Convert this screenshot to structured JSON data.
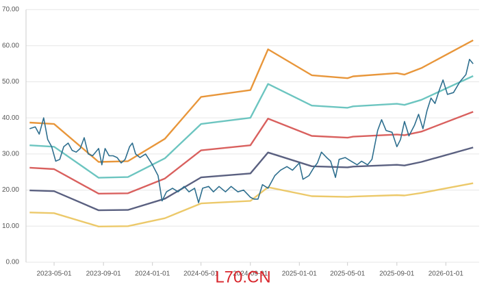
{
  "chart_data": {
    "type": "line",
    "annotation": "L70.CN",
    "xlim": [
      "2023-02-20",
      "2026-03-25"
    ],
    "xticks": [
      "2023-05-01",
      "2023-09-01",
      "2024-01-01",
      "2024-05-01",
      "2024-09-01",
      "2025-01-01",
      "2025-05-01",
      "2025-09-01",
      "2026-01-01"
    ],
    "ylim": [
      0,
      70
    ],
    "yticks": [
      {
        "value": 0,
        "label": "0.00"
      },
      {
        "value": 10,
        "label": "10.00"
      },
      {
        "value": 20,
        "label": "20.00"
      },
      {
        "value": 30,
        "label": "30.00"
      },
      {
        "value": 40,
        "label": "40.00"
      },
      {
        "value": 50,
        "label": "50.00"
      },
      {
        "value": 60,
        "label": "60.00"
      },
      {
        "value": 70,
        "label": "70.00"
      }
    ],
    "grid": true,
    "series": [
      {
        "color": "#e8963a",
        "x": [
          "2023-03-01",
          "2023-05-01",
          "2023-08-20",
          "2023-11-01",
          "2024-02-01",
          "2024-05-01",
          "2024-09-01",
          "2024-10-15",
          "2025-02-01",
          "2025-05-01",
          "2025-05-15",
          "2025-09-01",
          "2025-09-20",
          "2025-11-01",
          "2026-03-10"
        ],
        "values": [
          38.7,
          38.3,
          27.8,
          28,
          34.2,
          45.8,
          47.7,
          59,
          51.8,
          51,
          51.5,
          52.4,
          52,
          53.8,
          61.5
        ]
      },
      {
        "color": "#6cc5c0",
        "x": [
          "2023-03-01",
          "2023-05-01",
          "2023-08-20",
          "2023-11-01",
          "2024-02-01",
          "2024-05-01",
          "2024-09-01",
          "2024-10-15",
          "2025-02-01",
          "2025-05-01",
          "2025-05-15",
          "2025-09-01",
          "2025-09-20",
          "2025-11-01",
          "2026-03-10"
        ],
        "values": [
          32.4,
          32,
          23.4,
          23.6,
          28.8,
          38.3,
          40,
          49.4,
          43.4,
          42.8,
          43.2,
          43.9,
          43.6,
          45,
          51.6
        ]
      },
      {
        "color": "#d9605e",
        "x": [
          "2023-03-01",
          "2023-05-01",
          "2023-08-20",
          "2023-11-01",
          "2024-02-01",
          "2024-05-01",
          "2024-09-01",
          "2024-10-15",
          "2025-02-01",
          "2025-05-01",
          "2025-05-15",
          "2025-09-01",
          "2025-09-20",
          "2025-11-01",
          "2026-03-10"
        ],
        "values": [
          26.2,
          25.8,
          19,
          19.1,
          23.2,
          31,
          32.4,
          39.8,
          35,
          34.5,
          34.8,
          35.4,
          35.2,
          36.2,
          41.7
        ]
      },
      {
        "color": "#5a6080",
        "x": [
          "2023-03-01",
          "2023-05-01",
          "2023-08-20",
          "2023-11-01",
          "2024-02-01",
          "2024-05-01",
          "2024-09-01",
          "2024-10-15",
          "2025-02-01",
          "2025-05-01",
          "2025-05-15",
          "2025-09-01",
          "2025-09-20",
          "2025-11-01",
          "2026-03-10"
        ],
        "values": [
          19.9,
          19.7,
          14.4,
          14.5,
          17.6,
          23.5,
          24.6,
          30.4,
          26.6,
          26.3,
          26.5,
          27,
          26.8,
          27.8,
          31.8
        ]
      },
      {
        "color": "#ecc96a",
        "x": [
          "2023-03-01",
          "2023-05-01",
          "2023-08-20",
          "2023-11-01",
          "2024-02-01",
          "2024-05-01",
          "2024-09-01",
          "2024-10-15",
          "2025-02-01",
          "2025-05-01",
          "2025-05-15",
          "2025-09-01",
          "2025-09-20",
          "2025-11-01",
          "2026-03-10"
        ],
        "values": [
          13.8,
          13.6,
          9.9,
          10,
          12.2,
          16.3,
          17,
          20.8,
          18.3,
          18.1,
          18.2,
          18.6,
          18.5,
          19.2,
          21.9
        ]
      },
      {
        "color": "#2d6e8e",
        "x": [
          "2023-03-01",
          "2023-03-15",
          "2023-03-25",
          "2023-04-05",
          "2023-04-15",
          "2023-04-25",
          "2023-05-05",
          "2023-05-15",
          "2023-05-25",
          "2023-06-05",
          "2023-06-15",
          "2023-06-25",
          "2023-07-05",
          "2023-07-15",
          "2023-07-25",
          "2023-08-05",
          "2023-08-20",
          "2023-08-28",
          "2023-09-05",
          "2023-09-15",
          "2023-09-25",
          "2023-10-05",
          "2023-10-15",
          "2023-10-25",
          "2023-11-05",
          "2023-11-12",
          "2023-11-20",
          "2023-12-01",
          "2023-12-15",
          "2024-01-01",
          "2024-01-15",
          "2024-01-25",
          "2024-02-05",
          "2024-02-20",
          "2024-03-05",
          "2024-03-20",
          "2024-04-01",
          "2024-04-15",
          "2024-04-25",
          "2024-05-05",
          "2024-05-20",
          "2024-06-01",
          "2024-06-15",
          "2024-07-01",
          "2024-07-15",
          "2024-08-01",
          "2024-08-15",
          "2024-09-01",
          "2024-09-10",
          "2024-09-20",
          "2024-10-01",
          "2024-10-15",
          "2024-11-01",
          "2024-11-15",
          "2024-12-01",
          "2024-12-15",
          "2025-01-01",
          "2025-01-10",
          "2025-01-25",
          "2025-02-05",
          "2025-02-15",
          "2025-02-25",
          "2025-03-10",
          "2025-03-20",
          "2025-04-01",
          "2025-04-10",
          "2025-04-25",
          "2025-05-10",
          "2025-05-25",
          "2025-06-05",
          "2025-06-20",
          "2025-07-01",
          "2025-07-15",
          "2025-07-25",
          "2025-08-05",
          "2025-08-20",
          "2025-09-01",
          "2025-09-10",
          "2025-09-20",
          "2025-10-01",
          "2025-10-15",
          "2025-10-25",
          "2025-11-05",
          "2025-11-15",
          "2025-11-25",
          "2025-12-05",
          "2025-12-15",
          "2025-12-25",
          "2026-01-05",
          "2026-01-20",
          "2026-02-05",
          "2026-02-20",
          "2026-03-01",
          "2026-03-10"
        ],
        "values": [
          37,
          37.5,
          35.5,
          40,
          34,
          32,
          28,
          28.5,
          32,
          33,
          31,
          30.5,
          31.5,
          34.5,
          30,
          29.5,
          31.5,
          27,
          31.5,
          29.5,
          29.5,
          29,
          27.5,
          28.5,
          32,
          33,
          30,
          29,
          30,
          27,
          24,
          17,
          19.5,
          20.5,
          19.5,
          21,
          19.5,
          20.5,
          16.5,
          20.5,
          21,
          19.5,
          21,
          19.5,
          21,
          19.5,
          20,
          18,
          17.5,
          17.5,
          21.5,
          20.5,
          24,
          25.5,
          26.5,
          25.5,
          27.5,
          23,
          24,
          26,
          27.5,
          30.5,
          29,
          28,
          23.5,
          28.5,
          29,
          28,
          27,
          28,
          27,
          28.5,
          36.5,
          39.5,
          36.5,
          36,
          32,
          34,
          39,
          35,
          38,
          41,
          37,
          42,
          45.5,
          44,
          47.5,
          50.5,
          46.5,
          47,
          50,
          52,
          56.2,
          55
        ]
      }
    ]
  }
}
